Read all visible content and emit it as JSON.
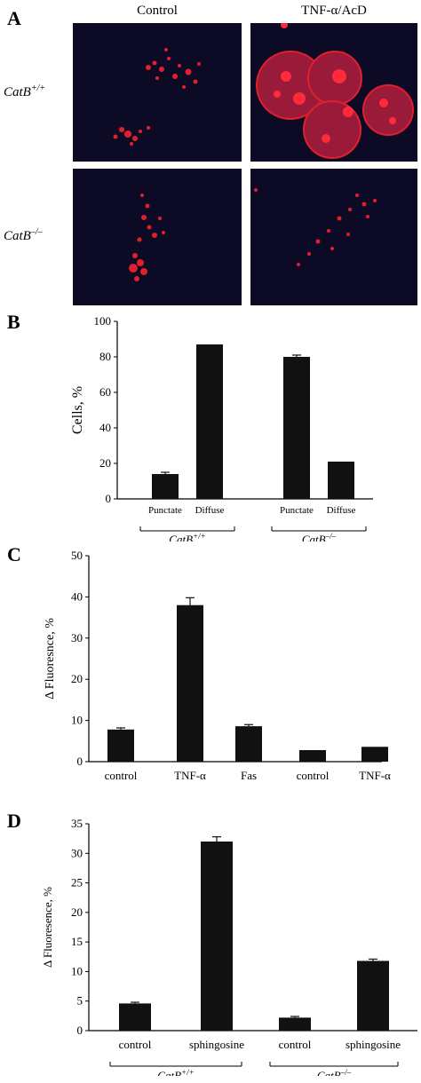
{
  "panel_a": {
    "letter": "A",
    "col_titles": [
      "Control",
      "TNF-α/AcD"
    ],
    "row_labels": [
      {
        "name": "CatB",
        "sup": "+/+"
      },
      {
        "name": "CatB",
        "sup": "–/–"
      }
    ]
  },
  "colors": {
    "bar": "#111111",
    "speck": "#e0202c",
    "micro_bg": "#0c0a24"
  },
  "chart_data": [
    {
      "panel": "B",
      "type": "bar",
      "ylabel": "Cells, %",
      "ylim": [
        0,
        100
      ],
      "yticks": [
        0,
        20,
        40,
        60,
        80,
        100
      ],
      "categories": [
        "Punctate",
        "Diffuse",
        "Punctate",
        "Diffuse"
      ],
      "values": [
        14,
        87,
        80,
        21
      ],
      "errors": [
        1,
        0,
        1,
        0
      ],
      "groups": [
        {
          "name": "CatB",
          "sup": "+/+",
          "categories": [
            0,
            1
          ]
        },
        {
          "name": "CatB",
          "sup": "–/–",
          "categories": [
            2,
            3
          ]
        }
      ]
    },
    {
      "panel": "C",
      "type": "bar",
      "ylabel": "Δ Fluoresnce, %",
      "ylim": [
        0,
        50
      ],
      "yticks": [
        0,
        10,
        20,
        30,
        40,
        50
      ],
      "categories": [
        "control",
        "TNF-α",
        "Fas",
        "control",
        "TNF-α"
      ],
      "values": [
        7.8,
        38,
        8.6,
        2.8,
        3.6
      ],
      "errors": [
        0.4,
        1.8,
        0.4,
        0,
        0
      ],
      "groups": [
        {
          "name": "CatB",
          "sup": "+/+",
          "categories": [
            0,
            1,
            2
          ]
        },
        {
          "name": "CatB",
          "sup": "–/–",
          "categories": [
            3,
            4
          ]
        }
      ]
    },
    {
      "panel": "D",
      "type": "bar",
      "ylabel": "Δ Fluoresence, %",
      "ylim": [
        0,
        35
      ],
      "yticks": [
        0,
        5,
        10,
        15,
        20,
        25,
        30,
        35
      ],
      "categories": [
        "control",
        "sphingosine",
        "control",
        "sphingosine"
      ],
      "values": [
        4.6,
        32,
        2.2,
        11.8
      ],
      "errors": [
        0.2,
        0.8,
        0.2,
        0.3
      ],
      "groups": [
        {
          "name": "CatB",
          "sup": "+/+",
          "categories": [
            0,
            1
          ]
        },
        {
          "name": "CatB",
          "sup": "–/–",
          "categories": [
            2,
            3
          ]
        }
      ]
    }
  ]
}
